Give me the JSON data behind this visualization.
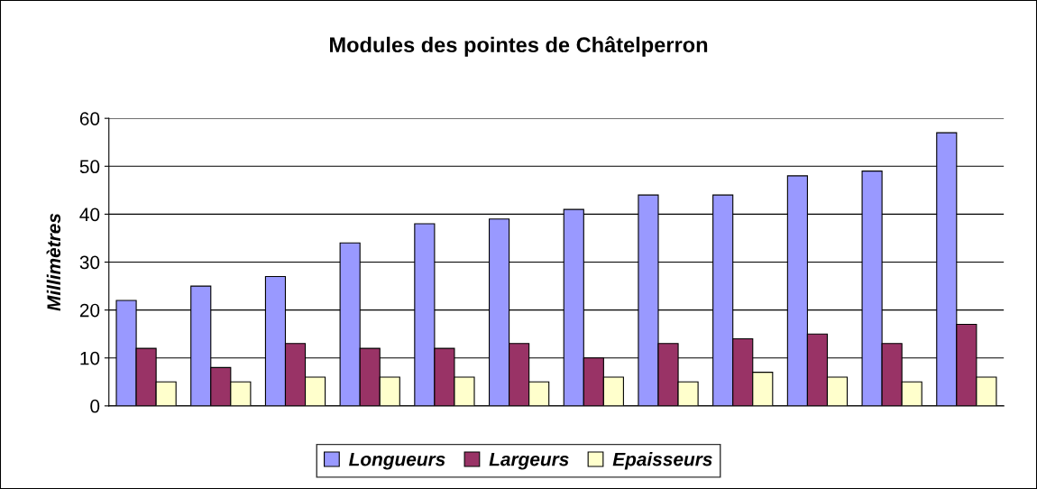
{
  "chart_data": {
    "type": "bar",
    "title": "Modules des pointes de Châtelperron",
    "ylabel": "Millimètres",
    "categories": [
      null,
      null,
      null,
      null,
      null,
      null,
      null,
      null,
      null,
      null,
      null,
      null
    ],
    "series": [
      {
        "name": "Longueurs",
        "color": "#9999ff",
        "values": [
          22,
          25,
          27,
          34,
          38,
          39,
          41,
          44,
          44,
          48,
          49,
          57
        ]
      },
      {
        "name": "Largeurs",
        "color": "#993366",
        "values": [
          12,
          8,
          13,
          12,
          12,
          13,
          10,
          13,
          14,
          15,
          13,
          17
        ]
      },
      {
        "name": "Epaisseurs",
        "color": "#ffffcc",
        "values": [
          5,
          5,
          6,
          6,
          6,
          5,
          6,
          5,
          7,
          6,
          5,
          6
        ]
      }
    ],
    "ylim": [
      0,
      60
    ],
    "yticks": [
      0,
      10,
      20,
      30,
      40,
      50,
      60
    ],
    "grid": "y",
    "legend": "bottom"
  }
}
